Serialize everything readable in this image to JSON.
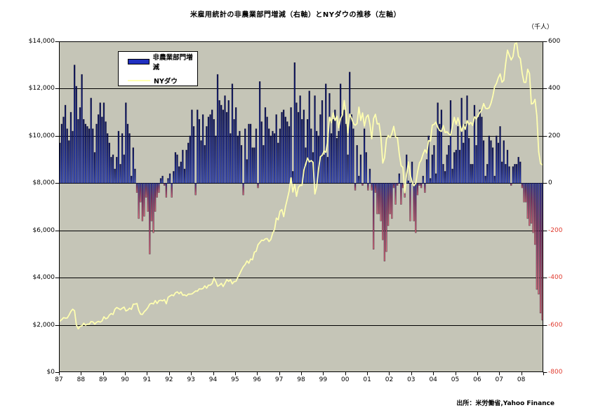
{
  "title": "米雇用統計の非農業部門増減（右軸）とNYダウの推移（左軸）",
  "right_axis_unit": "（千人）",
  "source": "出所：米労働省,Yahoo Finance",
  "legend": {
    "bar_label": "非農業部門増減",
    "line_label": "NYダウ"
  },
  "colors": {
    "plot_bg": "#c5c5b7",
    "grid": "#000000",
    "bar_pos_base": "#3a50d0",
    "bar_pos_mid": "#1a2a9c",
    "bar_pos_top": "#0a1058",
    "bar_neg_top": "#2c37a4",
    "bar_neg_mid": "#8c3368",
    "bar_neg_bottom": "#e4707e",
    "bar_stroke": "rgba(0,0,30,0.55)",
    "line": "#ffffb0",
    "tick_text": "#000000",
    "negative_tick_text": "#e03a2e"
  },
  "chart_data": {
    "type": "combo",
    "x_years": [
      "87",
      "88",
      "89",
      "90",
      "91",
      "92",
      "93",
      "94",
      "95",
      "96",
      "97",
      "98",
      "99",
      "00",
      "01",
      "02",
      "03",
      "04",
      "05",
      "06",
      "07",
      "08"
    ],
    "months_per_year": 12,
    "left_axis": {
      "min": 0,
      "max": 14000,
      "tick_values": [
        0,
        2000,
        4000,
        6000,
        8000,
        10000,
        12000,
        14000
      ],
      "tick_labels": [
        "$0",
        "$2,000",
        "$4,000",
        "$6,000",
        "$8,000",
        "$10,000",
        "$12,000",
        "$14,000"
      ]
    },
    "right_axis": {
      "min": -800,
      "max": 600,
      "tick_values": [
        -800,
        -600,
        -400,
        -200,
        0,
        200,
        400,
        600
      ],
      "tick_labels": [
        "-800",
        "-600",
        "-400",
        "-200",
        "0",
        "200",
        "400",
        "600"
      ]
    },
    "grid_step_left": 2000,
    "series": [
      {
        "name": "非農業部門増減",
        "type": "bar",
        "axis": "right",
        "values": [
          170,
          250,
          280,
          330,
          230,
          180,
          300,
          220,
          500,
          410,
          270,
          320,
          460,
          270,
          250,
          240,
          230,
          360,
          230,
          130,
          250,
          290,
          340,
          280,
          340,
          260,
          210,
          170,
          110,
          120,
          60,
          110,
          220,
          80,
          210,
          120,
          340,
          250,
          210,
          30,
          150,
          60,
          -40,
          -150,
          -80,
          -160,
          -140,
          -60,
          -120,
          -300,
          -160,
          -210,
          -120,
          -60,
          -40,
          20,
          30,
          -10,
          -60,
          20,
          40,
          -60,
          50,
          130,
          120,
          70,
          90,
          140,
          60,
          140,
          170,
          200,
          310,
          240,
          -50,
          310,
          270,
          180,
          290,
          160,
          240,
          280,
          290,
          310,
          270,
          200,
          460,
          350,
          330,
          310,
          370,
          300,
          350,
          210,
          420,
          270,
          320,
          200,
          220,
          160,
          -50,
          230,
          100,
          250,
          250,
          150,
          150,
          230,
          -20,
          430,
          260,
          160,
          320,
          280,
          230,
          200,
          220,
          210,
          290,
          170,
          230,
          300,
          310,
          280,
          260,
          240,
          320,
          50,
          510,
          340,
          300,
          370,
          270,
          310,
          150,
          270,
          390,
          230,
          130,
          370,
          220,
          200,
          290,
          350,
          120,
          420,
          110,
          380,
          210,
          270,
          310,
          190,
          220,
          420,
          290,
          310,
          250,
          120,
          470,
          290,
          230,
          -30,
          160,
          30,
          120,
          -10,
          230,
          130,
          -30,
          60,
          -30,
          -280,
          -40,
          -130,
          -130,
          -160,
          -240,
          -330,
          -290,
          -180,
          -130,
          -150,
          -20,
          -90,
          -10,
          40,
          -90,
          -20,
          -60,
          120,
          10,
          -160,
          90,
          -160,
          -210,
          -50,
          -10,
          -20,
          30,
          -40,
          100,
          200,
          20,
          120,
          160,
          40,
          340,
          250,
          310,
          80,
          50,
          120,
          160,
          350,
          60,
          130,
          140,
          240,
          140,
          360,
          170,
          250,
          370,
          190,
          80,
          80,
          330,
          160,
          280,
          310,
          280,
          180,
          30,
          80,
          200,
          180,
          150,
          30,
          200,
          170,
          240,
          90,
          180,
          80,
          140,
          70,
          -10,
          70,
          80,
          80,
          110,
          90,
          -20,
          -80,
          -80,
          -150,
          -180,
          -170,
          -210,
          -260,
          -450,
          -470,
          -550,
          -580
        ]
      },
      {
        "name": "NYダウ",
        "type": "line",
        "axis": "left",
        "values": [
          2158,
          2224,
          2305,
          2286,
          2292,
          2419,
          2572,
          2663,
          2596,
          1994,
          1834,
          1939,
          1958,
          2072,
          1988,
          2032,
          2031,
          2142,
          2129,
          2032,
          2113,
          2149,
          2115,
          2169,
          2342,
          2258,
          2294,
          2419,
          2480,
          2440,
          2661,
          2737,
          2693,
          2645,
          2706,
          2753,
          2590,
          2627,
          2707,
          2657,
          2877,
          2881,
          2905,
          2614,
          2453,
          2442,
          2560,
          2634,
          2736,
          2882,
          2914,
          2888,
          3028,
          2907,
          3025,
          3044,
          3017,
          3069,
          2895,
          3169,
          3223,
          3268,
          3236,
          3359,
          3397,
          3319,
          3394,
          3257,
          3272,
          3226,
          3305,
          3301,
          3310,
          3371,
          3435,
          3428,
          3527,
          3516,
          3540,
          3651,
          3555,
          3681,
          3684,
          3754,
          3978,
          3832,
          3636,
          3682,
          3758,
          3625,
          3765,
          3913,
          3843,
          3908,
          3739,
          3834,
          3844,
          4011,
          4158,
          4321,
          4465,
          4556,
          4708,
          4611,
          4789,
          4756,
          5075,
          5117,
          5395,
          5486,
          5587,
          5569,
          5643,
          5655,
          5529,
          5616,
          5882,
          6029,
          6522,
          6448,
          6813,
          6878,
          6583,
          7009,
          7331,
          7673,
          8223,
          7622,
          7945,
          7442,
          7823,
          7908,
          7907,
          8546,
          8800,
          9063,
          8900,
          8952,
          8883,
          7539,
          7843,
          8592,
          9117,
          9181,
          9359,
          9307,
          9786,
          10789,
          10560,
          10971,
          10655,
          10829,
          10337,
          10730,
          10878,
          11497,
          10941,
          10128,
          10922,
          10734,
          10522,
          10448,
          10522,
          11215,
          10651,
          10971,
          10414,
          10788,
          10887,
          10495,
          9879,
          10735,
          10912,
          10502,
          10523,
          9950,
          8847,
          9075,
          9852,
          10021,
          9920,
          10106,
          10404,
          9946,
          9925,
          9243,
          8737,
          8664,
          7591,
          8397,
          8896,
          8341,
          8054,
          7891,
          7992,
          8480,
          8850,
          8985,
          9234,
          9416,
          9275,
          9801,
          9782,
          10454,
          10488,
          10584,
          10358,
          10226,
          10188,
          10435,
          10140,
          10174,
          10080,
          10027,
          10428,
          10783,
          10490,
          10766,
          10504,
          10193,
          10467,
          10275,
          10641,
          10482,
          10569,
          10440,
          10806,
          10718,
          10865,
          10993,
          11109,
          11367,
          11168,
          11150,
          11186,
          11381,
          11679,
          12081,
          12222,
          12463,
          12622,
          12269,
          12354,
          13063,
          13628,
          13409,
          13212,
          13358,
          13896,
          13930,
          13372,
          13265,
          12650,
          12266,
          12263,
          12820,
          12638,
          11350,
          11378,
          11544,
          10851,
          9325,
          8829,
          8776
        ]
      }
    ]
  }
}
